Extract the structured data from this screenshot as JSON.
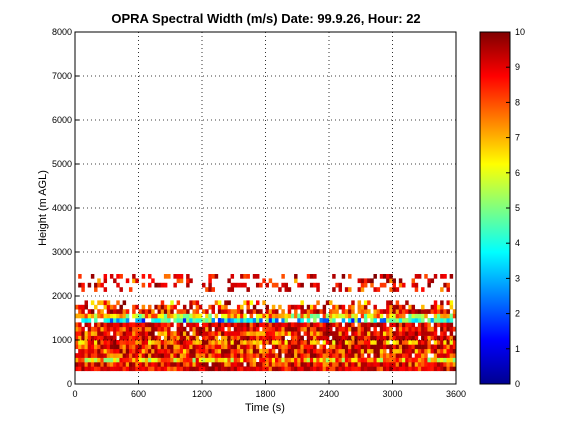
{
  "chart_data": {
    "type": "heatmap",
    "title": "OPRA Spectral Width (m/s)  Date: 99.9.26, Hour: 22",
    "xlabel": "Time (s)",
    "ylabel": "Height (m AGL)",
    "xlim": [
      0,
      3600
    ],
    "ylim": [
      0,
      8000
    ],
    "xticks": [
      "0",
      "600",
      "1200",
      "1800",
      "2400",
      "3000",
      "3600"
    ],
    "yticks": [
      "0",
      "1000",
      "2000",
      "3000",
      "4000",
      "5000",
      "6000",
      "7000",
      "8000"
    ],
    "grid": true,
    "colorbar": {
      "range": [
        0,
        10
      ],
      "ticks": [
        "0",
        "1",
        "2",
        "3",
        "4",
        "5",
        "6",
        "7",
        "8",
        "9",
        "10"
      ]
    },
    "layers": [
      {
        "y": [
          300,
          400
        ],
        "value": 9.5,
        "coverage": 1.0
      },
      {
        "y": [
          400,
          500
        ],
        "value": 9.0,
        "coverage": 0.98
      },
      {
        "y": [
          500,
          600
        ],
        "value": 7.0,
        "coverage": 0.97
      },
      {
        "y": [
          600,
          700
        ],
        "value": 9.0,
        "coverage": 0.95
      },
      {
        "y": [
          700,
          800
        ],
        "value": 8.5,
        "coverage": 0.95
      },
      {
        "y": [
          800,
          900
        ],
        "value": 9.0,
        "coverage": 0.95
      },
      {
        "y": [
          900,
          1000
        ],
        "value": 8.0,
        "coverage": 0.93
      },
      {
        "y": [
          1000,
          1100
        ],
        "value": 9.0,
        "coverage": 0.93
      },
      {
        "y": [
          1100,
          1200
        ],
        "value": 8.5,
        "coverage": 0.92
      },
      {
        "y": [
          1200,
          1300
        ],
        "value": 9.0,
        "coverage": 0.9
      },
      {
        "y": [
          1300,
          1400
        ],
        "value": 9.5,
        "coverage": 0.9
      },
      {
        "y": [
          1400,
          1500
        ],
        "value": 3.5,
        "coverage": 0.85
      },
      {
        "y": [
          1500,
          1600
        ],
        "value": 6.5,
        "coverage": 0.85
      },
      {
        "y": [
          1600,
          1700
        ],
        "value": 9.0,
        "coverage": 0.8
      },
      {
        "y": [
          1700,
          1800
        ],
        "value": 8.5,
        "coverage": 0.6
      },
      {
        "y": [
          1800,
          1900
        ],
        "value": 8.0,
        "coverage": 0.3
      },
      {
        "y": [
          2100,
          2200
        ],
        "value": 9.0,
        "coverage": 0.25
      },
      {
        "y": [
          2200,
          2300
        ],
        "value": 9.5,
        "coverage": 0.3
      },
      {
        "y": [
          2300,
          2400
        ],
        "value": 9.0,
        "coverage": 0.25
      },
      {
        "y": [
          2400,
          2500
        ],
        "value": 9.5,
        "coverage": 0.3
      }
    ]
  }
}
